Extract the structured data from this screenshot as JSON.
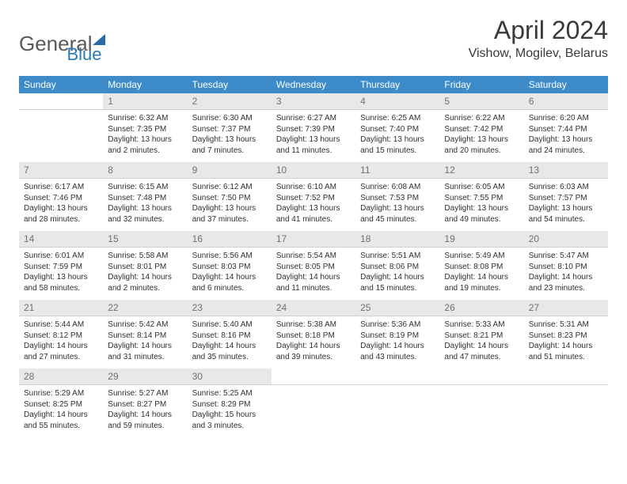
{
  "logo": {
    "text1": "General",
    "text2": "Blue"
  },
  "title": "April 2024",
  "location": "Vishow, Mogilev, Belarus",
  "header_bg": "#3d8bc9",
  "header_text_color": "#ffffff",
  "daynum_bg": "#e8e8e8",
  "daynum_color": "#707070",
  "cell_text_color": "#303030",
  "cell_fontsize": 10,
  "days_of_week": [
    "Sunday",
    "Monday",
    "Tuesday",
    "Wednesday",
    "Thursday",
    "Friday",
    "Saturday"
  ],
  "weeks": [
    [
      null,
      {
        "n": "1",
        "sr": "Sunrise: 6:32 AM",
        "ss": "Sunset: 7:35 PM",
        "d1": "Daylight: 13 hours",
        "d2": "and 2 minutes."
      },
      {
        "n": "2",
        "sr": "Sunrise: 6:30 AM",
        "ss": "Sunset: 7:37 PM",
        "d1": "Daylight: 13 hours",
        "d2": "and 7 minutes."
      },
      {
        "n": "3",
        "sr": "Sunrise: 6:27 AM",
        "ss": "Sunset: 7:39 PM",
        "d1": "Daylight: 13 hours",
        "d2": "and 11 minutes."
      },
      {
        "n": "4",
        "sr": "Sunrise: 6:25 AM",
        "ss": "Sunset: 7:40 PM",
        "d1": "Daylight: 13 hours",
        "d2": "and 15 minutes."
      },
      {
        "n": "5",
        "sr": "Sunrise: 6:22 AM",
        "ss": "Sunset: 7:42 PM",
        "d1": "Daylight: 13 hours",
        "d2": "and 20 minutes."
      },
      {
        "n": "6",
        "sr": "Sunrise: 6:20 AM",
        "ss": "Sunset: 7:44 PM",
        "d1": "Daylight: 13 hours",
        "d2": "and 24 minutes."
      }
    ],
    [
      {
        "n": "7",
        "sr": "Sunrise: 6:17 AM",
        "ss": "Sunset: 7:46 PM",
        "d1": "Daylight: 13 hours",
        "d2": "and 28 minutes."
      },
      {
        "n": "8",
        "sr": "Sunrise: 6:15 AM",
        "ss": "Sunset: 7:48 PM",
        "d1": "Daylight: 13 hours",
        "d2": "and 32 minutes."
      },
      {
        "n": "9",
        "sr": "Sunrise: 6:12 AM",
        "ss": "Sunset: 7:50 PM",
        "d1": "Daylight: 13 hours",
        "d2": "and 37 minutes."
      },
      {
        "n": "10",
        "sr": "Sunrise: 6:10 AM",
        "ss": "Sunset: 7:52 PM",
        "d1": "Daylight: 13 hours",
        "d2": "and 41 minutes."
      },
      {
        "n": "11",
        "sr": "Sunrise: 6:08 AM",
        "ss": "Sunset: 7:53 PM",
        "d1": "Daylight: 13 hours",
        "d2": "and 45 minutes."
      },
      {
        "n": "12",
        "sr": "Sunrise: 6:05 AM",
        "ss": "Sunset: 7:55 PM",
        "d1": "Daylight: 13 hours",
        "d2": "and 49 minutes."
      },
      {
        "n": "13",
        "sr": "Sunrise: 6:03 AM",
        "ss": "Sunset: 7:57 PM",
        "d1": "Daylight: 13 hours",
        "d2": "and 54 minutes."
      }
    ],
    [
      {
        "n": "14",
        "sr": "Sunrise: 6:01 AM",
        "ss": "Sunset: 7:59 PM",
        "d1": "Daylight: 13 hours",
        "d2": "and 58 minutes."
      },
      {
        "n": "15",
        "sr": "Sunrise: 5:58 AM",
        "ss": "Sunset: 8:01 PM",
        "d1": "Daylight: 14 hours",
        "d2": "and 2 minutes."
      },
      {
        "n": "16",
        "sr": "Sunrise: 5:56 AM",
        "ss": "Sunset: 8:03 PM",
        "d1": "Daylight: 14 hours",
        "d2": "and 6 minutes."
      },
      {
        "n": "17",
        "sr": "Sunrise: 5:54 AM",
        "ss": "Sunset: 8:05 PM",
        "d1": "Daylight: 14 hours",
        "d2": "and 11 minutes."
      },
      {
        "n": "18",
        "sr": "Sunrise: 5:51 AM",
        "ss": "Sunset: 8:06 PM",
        "d1": "Daylight: 14 hours",
        "d2": "and 15 minutes."
      },
      {
        "n": "19",
        "sr": "Sunrise: 5:49 AM",
        "ss": "Sunset: 8:08 PM",
        "d1": "Daylight: 14 hours",
        "d2": "and 19 minutes."
      },
      {
        "n": "20",
        "sr": "Sunrise: 5:47 AM",
        "ss": "Sunset: 8:10 PM",
        "d1": "Daylight: 14 hours",
        "d2": "and 23 minutes."
      }
    ],
    [
      {
        "n": "21",
        "sr": "Sunrise: 5:44 AM",
        "ss": "Sunset: 8:12 PM",
        "d1": "Daylight: 14 hours",
        "d2": "and 27 minutes."
      },
      {
        "n": "22",
        "sr": "Sunrise: 5:42 AM",
        "ss": "Sunset: 8:14 PM",
        "d1": "Daylight: 14 hours",
        "d2": "and 31 minutes."
      },
      {
        "n": "23",
        "sr": "Sunrise: 5:40 AM",
        "ss": "Sunset: 8:16 PM",
        "d1": "Daylight: 14 hours",
        "d2": "and 35 minutes."
      },
      {
        "n": "24",
        "sr": "Sunrise: 5:38 AM",
        "ss": "Sunset: 8:18 PM",
        "d1": "Daylight: 14 hours",
        "d2": "and 39 minutes."
      },
      {
        "n": "25",
        "sr": "Sunrise: 5:36 AM",
        "ss": "Sunset: 8:19 PM",
        "d1": "Daylight: 14 hours",
        "d2": "and 43 minutes."
      },
      {
        "n": "26",
        "sr": "Sunrise: 5:33 AM",
        "ss": "Sunset: 8:21 PM",
        "d1": "Daylight: 14 hours",
        "d2": "and 47 minutes."
      },
      {
        "n": "27",
        "sr": "Sunrise: 5:31 AM",
        "ss": "Sunset: 8:23 PM",
        "d1": "Daylight: 14 hours",
        "d2": "and 51 minutes."
      }
    ],
    [
      {
        "n": "28",
        "sr": "Sunrise: 5:29 AM",
        "ss": "Sunset: 8:25 PM",
        "d1": "Daylight: 14 hours",
        "d2": "and 55 minutes."
      },
      {
        "n": "29",
        "sr": "Sunrise: 5:27 AM",
        "ss": "Sunset: 8:27 PM",
        "d1": "Daylight: 14 hours",
        "d2": "and 59 minutes."
      },
      {
        "n": "30",
        "sr": "Sunrise: 5:25 AM",
        "ss": "Sunset: 8:29 PM",
        "d1": "Daylight: 15 hours",
        "d2": "and 3 minutes."
      },
      null,
      null,
      null,
      null
    ]
  ]
}
